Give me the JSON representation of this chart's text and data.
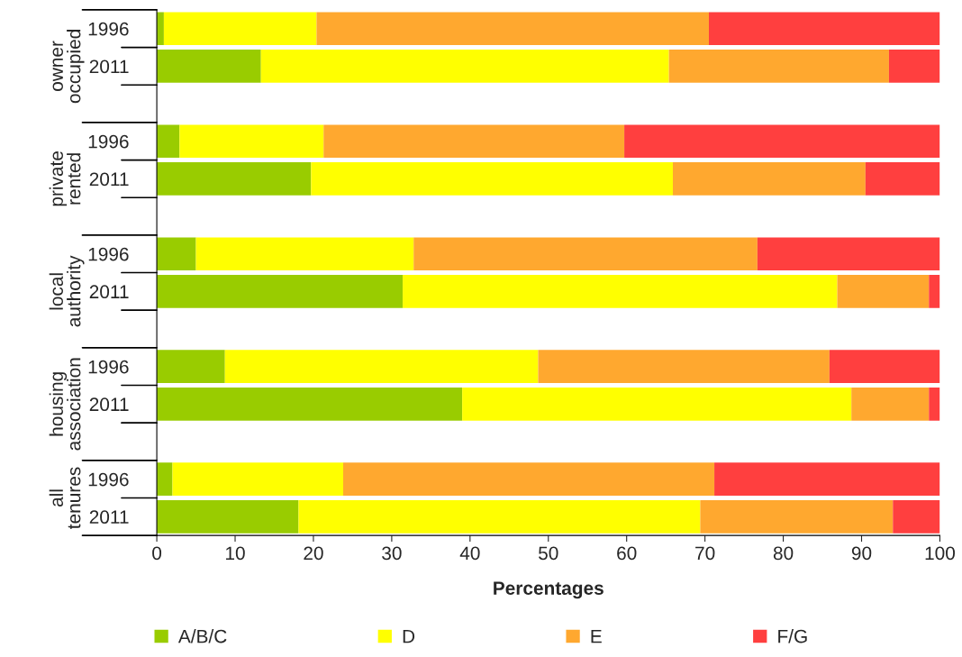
{
  "chart_data": {
    "type": "bar",
    "orientation": "horizontal",
    "stacked": true,
    "xlabel": "Percentages",
    "categories": [
      "1996",
      "2011",
      null,
      "1996",
      "2011",
      null,
      "1996",
      "2011",
      null,
      "1996",
      "2011",
      null,
      "1996",
      "2011"
    ],
    "series": [
      {
        "name": "A/B/C",
        "color": "#99cc00",
        "values": [
          0.9,
          13.3,
          null,
          2.9,
          19.7,
          null,
          5.0,
          31.4,
          null,
          8.7,
          39.0,
          null,
          2.0,
          18.1
        ]
      },
      {
        "name": "D",
        "color": "#ffff00",
        "values": [
          19.5,
          52.1,
          null,
          18.4,
          46.2,
          null,
          27.8,
          55.5,
          null,
          40.0,
          49.7,
          null,
          21.8,
          51.3
        ]
      },
      {
        "name": "E",
        "color": "#ffa82f",
        "values": [
          50.1,
          28.1,
          null,
          38.4,
          24.6,
          null,
          43.9,
          11.7,
          null,
          37.2,
          9.9,
          null,
          47.4,
          24.6
        ]
      },
      {
        "name": "F/G",
        "color": "#ff3f3f",
        "values": [
          29.5,
          6.5,
          null,
          40.3,
          9.5,
          null,
          23.3,
          1.4,
          null,
          14.1,
          1.4,
          null,
          28.8,
          6.0
        ]
      }
    ],
    "annotations": [
      "owner\noccupied",
      "private\nrented",
      "local\nauthority",
      "housing\nassociation",
      "all\ntenures"
    ],
    "xlim": [
      0,
      100
    ],
    "xticks": [
      0,
      10,
      20,
      30,
      40,
      50,
      60,
      70,
      80,
      90,
      100
    ],
    "grid": false,
    "legend": "bottom"
  }
}
